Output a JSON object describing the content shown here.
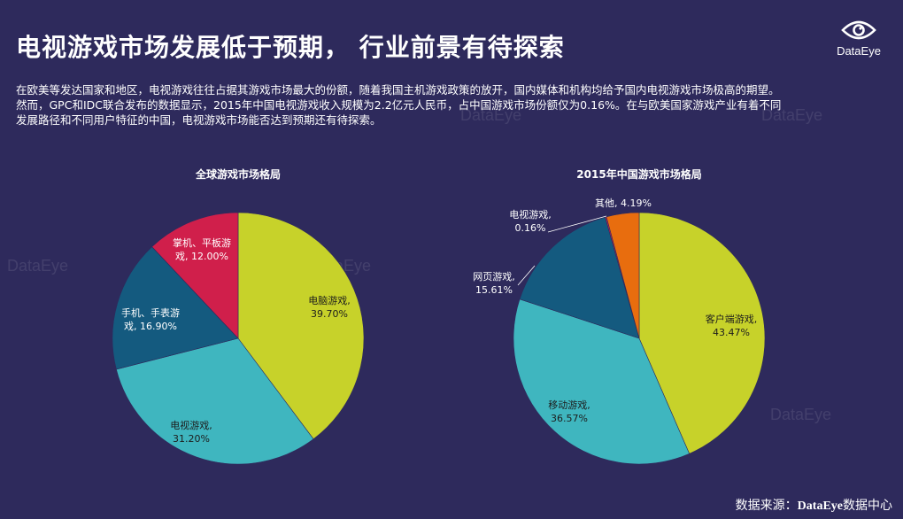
{
  "header": {
    "title": "电视游戏市场发展低于预期， 行业前景有待探索",
    "logo_text": "DataEye",
    "logo_icon": "eye-icon"
  },
  "intro": {
    "line1": "在欧美等发达国家和地区，电视游戏往往占据其游戏市场最大的份额，随着我国主机游戏政策的放开，国内媒体和机构均给予国内电视游戏市场极高的期望。",
    "line2": "然而，GPC和IDC联合发布的数据显示，2015年中国电视游戏收入规模为2.2亿元人民币，占中国游戏市场份额仅为0.16%。在与欧美国家游戏产业有着不同",
    "line3": "发展路径和不同用户特征的中国，电视游戏市场能否达到预期还有待探索。"
  },
  "watermark": {
    "text": "DataEye"
  },
  "footer": {
    "source_prefix": "数据来源：",
    "source_brand": "DataEye",
    "source_suffix": "数据中心"
  },
  "chart_data": [
    {
      "type": "pie",
      "title": "全球游戏市场格局",
      "slices": [
        {
          "label_lines": [
            "电脑游戏,",
            "39.70%"
          ],
          "value": 39.7,
          "color": "#c7d22a"
        },
        {
          "label_lines": [
            "电视游戏,",
            "31.20%"
          ],
          "value": 31.2,
          "color": "#3fb6bf"
        },
        {
          "label_lines": [
            "手机、手表游",
            "戏, 16.90%"
          ],
          "value": 16.9,
          "color": "#145a7f"
        },
        {
          "label_lines": [
            "掌机、平板游",
            "戏, 12.00%"
          ],
          "value": 12.0,
          "color": "#d01f4b"
        }
      ]
    },
    {
      "type": "pie",
      "title": "2015年中国游戏市场格局",
      "slices": [
        {
          "label_lines": [
            "客户端游戏,",
            "43.47%"
          ],
          "value": 43.47,
          "color": "#c7d22a"
        },
        {
          "label_lines": [
            "移动游戏,",
            "36.57%"
          ],
          "value": 36.57,
          "color": "#3fb6bf"
        },
        {
          "label_lines": [
            "网页游戏,",
            "15.61%"
          ],
          "value": 15.61,
          "color": "#145a7f"
        },
        {
          "label_lines": [
            "电视游戏,",
            "0.16%"
          ],
          "value": 0.16,
          "color": "#d01f4b"
        },
        {
          "label_lines": [
            "其他, 4.19%"
          ],
          "value": 4.19,
          "color": "#e86d0e"
        }
      ]
    }
  ]
}
